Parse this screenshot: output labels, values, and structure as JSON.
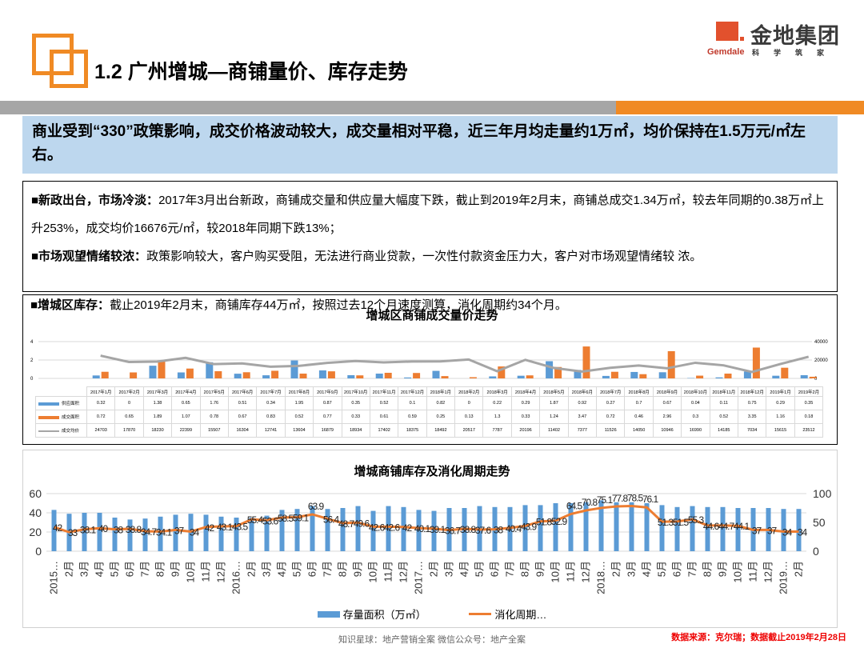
{
  "header": {
    "title": "1.2  广州增城—商铺量价、库存走势",
    "brand_cn": "金地集团",
    "brand_en": "Gemdale",
    "brand_slogan": "科学筑家",
    "accent": "#f08a24"
  },
  "summary": "商业受到“330”政策影响，成交价格波动较大，成交量相对平稳，近三年月均走量约1万㎡，均价保持在1.5万元/㎡左右。",
  "points": [
    {
      "head": "■新政出台，市场冷淡：",
      "body": "2017年3月出台新政，商铺成交量和供应量大幅度下跌，截止到2019年2月末，商铺总成交1.34万㎡，较去年同期的0.38万㎡上升253%，成交均价16676元/㎡，较2018年同期下跌13%；"
    },
    {
      "head": "■市场观望情绪较浓：",
      "body": "政策影响较大，客户购买受阻，无法进行商业贷款，一次性付款资金压力大，客户对市场观望情绪较 浓。"
    },
    {
      "head": "■增城区库存：",
      "body": "截止2019年2月末，商铺库存44万㎡，按照过去12个月速度测算，消化周期约34个月。"
    }
  ],
  "chart_data": [
    {
      "type": "bar",
      "title": "增城区商铺成交量价走势",
      "categories": [
        "2017年1月",
        "2017年2月",
        "2017年3月",
        "2017年4月",
        "2017年5月",
        "2017年6月",
        "2017年7月",
        "2017年8月",
        "2017年9月",
        "2017年10月",
        "2017年11月",
        "2017年12月",
        "2018年1月",
        "2018年2月",
        "2018年3月",
        "2018年4月",
        "2018年5月",
        "2018年6月",
        "2018年7月",
        "2018年8月",
        "2018年9月",
        "2018年10月",
        "2018年11月",
        "2018年12月",
        "2019年1月",
        "2019年2月"
      ],
      "series": [
        {
          "name": "供应面积",
          "type": "bar",
          "axis": "left",
          "color": "#5b9bd5",
          "values": [
            0.32,
            0,
            1.38,
            0.65,
            1.76,
            0.51,
            0.34,
            1.95,
            0.87,
            0.35,
            0.52,
            0.1,
            0.82,
            0,
            0.22,
            0.29,
            1.87,
            0.92,
            0.27,
            0.7,
            0.67,
            0.04,
            0.11,
            0.75,
            0.29,
            0.35
          ]
        },
        {
          "name": "成交面积",
          "type": "bar",
          "axis": "left",
          "color": "#ed7d31",
          "values": [
            0.72,
            0.65,
            1.89,
            1.07,
            0.78,
            0.67,
            0.83,
            0.52,
            0.77,
            0.33,
            0.61,
            0.59,
            0.25,
            0.13,
            1.3,
            0.33,
            1.24,
            3.47,
            0.72,
            0.46,
            2.96,
            0.3,
            0.52,
            3.35,
            1.16,
            0.18
          ]
        },
        {
          "name": "成交均价",
          "type": "line",
          "axis": "right",
          "color": "#a5a5a5",
          "values": [
            24703,
            17870,
            18230,
            22399,
            15507,
            16304,
            12741,
            13604,
            16879,
            18934,
            17402,
            18375,
            18492,
            20517,
            7787,
            20196,
            11402,
            7377,
            11526,
            14050,
            10946,
            16990,
            14185,
            7034,
            15615,
            23512
          ]
        }
      ],
      "ylim_left": [
        0,
        4
      ],
      "yticks_left": [
        0,
        2,
        4
      ],
      "ylim_right": [
        0,
        40000
      ],
      "yticks_right": [
        0,
        20000,
        40000
      ],
      "grid": true,
      "legend": "data-table"
    },
    {
      "type": "bar",
      "title": "增城商铺库存及消化周期走势",
      "categories": [
        "2015…",
        "2月",
        "3月",
        "4月",
        "5月",
        "6月",
        "7月",
        "8月",
        "9月",
        "10月",
        "11月",
        "12月",
        "2016…",
        "2月",
        "3月",
        "4月",
        "5月",
        "6月",
        "7月",
        "8月",
        "9月",
        "10月",
        "11月",
        "12月",
        "2017…",
        "2月",
        "3月",
        "4月",
        "5月",
        "6月",
        "7月",
        "8月",
        "9月",
        "10月",
        "11月",
        "12月",
        "2018…",
        "2月",
        "3月",
        "4月",
        "5月",
        "6月",
        "7月",
        "8月",
        "9月",
        "10月",
        "11月",
        "12月",
        "2019…",
        "2月"
      ],
      "series": [
        {
          "name": "存量面积（万㎡）",
          "type": "bar",
          "axis": "left",
          "color": "#5b9bd5",
          "values": [
            43,
            39,
            40,
            40,
            35,
            33,
            34,
            36,
            38,
            39,
            38,
            36,
            35,
            35,
            37,
            43,
            44,
            47,
            44,
            45,
            47,
            42,
            47,
            46,
            43,
            42,
            45,
            45,
            47,
            46,
            46,
            48,
            48,
            50,
            50,
            51,
            53,
            51,
            51,
            50,
            48,
            46,
            47,
            46,
            46,
            45,
            45,
            45,
            44,
            44
          ]
        },
        {
          "name": "消化周期…",
          "type": "line",
          "axis": "right",
          "color": "#ed7d31",
          "values": [
            42,
            33,
            38.1,
            40,
            38,
            38.8,
            34.7,
            34.1,
            37,
            34,
            42,
            43.1,
            43.5,
            55.4,
            53.6,
            58.5,
            59.1,
            63.9,
            56.4,
            48.7,
            49.6,
            42.6,
            42.6,
            42,
            40.1,
            39.1,
            36.7,
            38.8,
            37.6,
            38,
            40.4,
            43.9,
            51.8,
            52.9,
            64.5,
            70.8,
            75.1,
            77.8,
            78.5,
            76.1,
            51.3,
            51.5,
            55.3,
            44.6,
            44.7,
            44.1,
            37,
            37,
            34,
            34
          ]
        }
      ],
      "ylim_left": [
        0,
        60
      ],
      "yticks_left": [
        0,
        20,
        40,
        60
      ],
      "ylim_right": [
        0,
        100
      ],
      "yticks_right": [
        0,
        50,
        100
      ],
      "grid": true,
      "legend": "bottom"
    }
  ],
  "footer": {
    "mid": "知识星球：地产营销全案   微信公众号：地产全案",
    "source": "数据来源：克尔瑞；数据截止2019年2月28日"
  }
}
